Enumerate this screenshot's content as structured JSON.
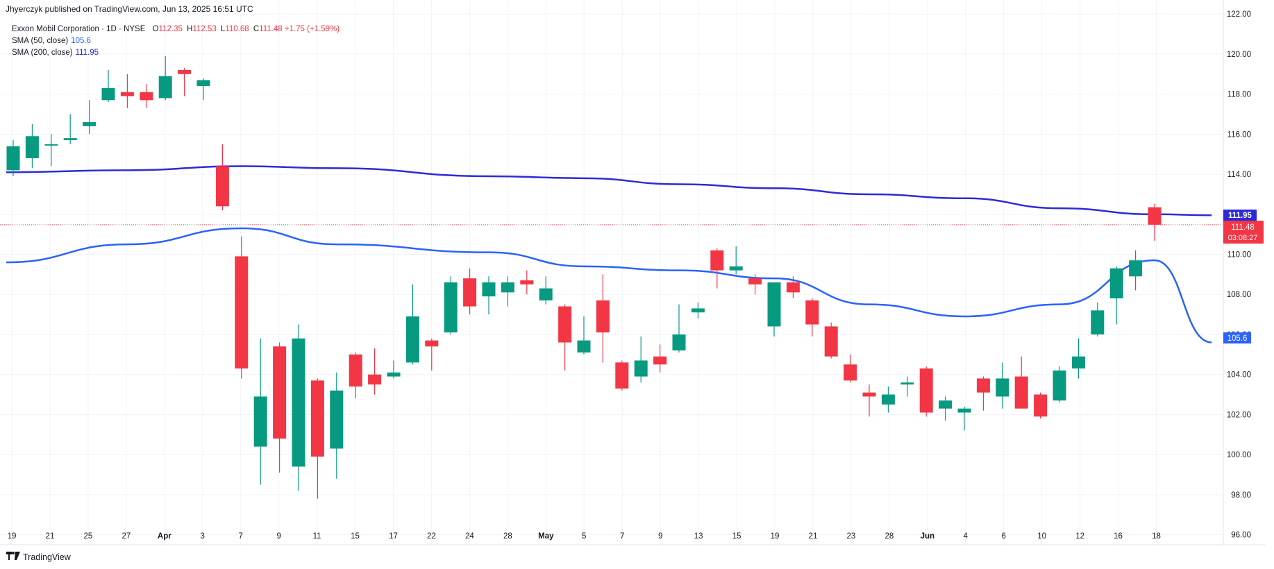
{
  "header": {
    "publisher": "Jhyerczyk published on TradingView.com, Jun 13, 2025 16:51 UTC"
  },
  "legend": {
    "symbol": "Exxon Mobil Corporation · 1D · NYSE",
    "open_label": "O",
    "open": "112.35",
    "high_label": "H",
    "high": "112.53",
    "low_label": "L",
    "low": "110.68",
    "close_label": "C",
    "close": "111.48",
    "change": "+1.75 (+1.59%)",
    "sma50_label": "SMA (50, close)",
    "sma50_value": "105.6",
    "sma200_label": "SMA (200, close)",
    "sma200_value": "111.95"
  },
  "brand": {
    "name": "TradingView"
  },
  "price_tags": {
    "sma200": "111.95",
    "last": "111.48",
    "countdown": "03:08:27",
    "sma50": "105.6"
  },
  "colors": {
    "up": "#089981",
    "down": "#f23645",
    "sma50": "#2962ff",
    "sma200": "#2b2bd8",
    "grid": "#f0f3fa"
  },
  "chart_data": {
    "type": "candlestick",
    "ylim": [
      95.5,
      122.7
    ],
    "yticks": [
      96,
      98,
      100,
      102,
      104,
      106,
      108,
      110,
      112,
      114,
      116,
      118,
      120,
      122
    ],
    "xticks": [
      "19",
      "21",
      "25",
      "27",
      "Apr",
      "3",
      "7",
      "9",
      "11",
      "15",
      "17",
      "22",
      "24",
      "28",
      "May",
      "5",
      "7",
      "9",
      "13",
      "15",
      "19",
      "21",
      "23",
      "28",
      "Jun",
      "4",
      "6",
      "10",
      "12",
      "16",
      "18"
    ],
    "last_price": 111.48,
    "candles": [
      {
        "o": 114.2,
        "h": 115.7,
        "l": 113.9,
        "c": 115.4
      },
      {
        "o": 114.8,
        "h": 116.5,
        "l": 114.3,
        "c": 115.9
      },
      {
        "o": 115.5,
        "h": 116.0,
        "l": 114.4,
        "c": 115.5
      },
      {
        "o": 115.7,
        "h": 117.0,
        "l": 115.5,
        "c": 115.8
      },
      {
        "o": 116.4,
        "h": 117.7,
        "l": 116.0,
        "c": 116.6
      },
      {
        "o": 117.7,
        "h": 119.2,
        "l": 117.6,
        "c": 118.3
      },
      {
        "o": 118.1,
        "h": 119.0,
        "l": 117.3,
        "c": 117.9
      },
      {
        "o": 118.1,
        "h": 118.5,
        "l": 117.3,
        "c": 117.7
      },
      {
        "o": 117.8,
        "h": 119.9,
        "l": 117.7,
        "c": 118.9
      },
      {
        "o": 119.2,
        "h": 119.3,
        "l": 117.9,
        "c": 119.0
      },
      {
        "o": 118.4,
        "h": 118.8,
        "l": 117.7,
        "c": 118.7
      },
      {
        "o": 114.4,
        "h": 115.5,
        "l": 112.2,
        "c": 112.4
      },
      {
        "o": 109.9,
        "h": 110.9,
        "l": 103.8,
        "c": 104.3
      },
      {
        "o": 100.4,
        "h": 105.8,
        "l": 98.5,
        "c": 102.9
      },
      {
        "o": 105.4,
        "h": 105.6,
        "l": 99.1,
        "c": 100.8
      },
      {
        "o": 99.4,
        "h": 106.5,
        "l": 98.2,
        "c": 105.8
      },
      {
        "o": 103.7,
        "h": 103.8,
        "l": 97.8,
        "c": 99.9
      },
      {
        "o": 100.3,
        "h": 104.1,
        "l": 98.8,
        "c": 103.2
      },
      {
        "o": 105.0,
        "h": 105.1,
        "l": 102.8,
        "c": 103.4
      },
      {
        "o": 104.0,
        "h": 105.3,
        "l": 103.0,
        "c": 103.5
      },
      {
        "o": 103.9,
        "h": 104.7,
        "l": 103.8,
        "c": 104.1
      },
      {
        "o": 104.6,
        "h": 108.5,
        "l": 104.5,
        "c": 106.9
      },
      {
        "o": 105.7,
        "h": 105.8,
        "l": 104.2,
        "c": 105.4
      },
      {
        "o": 106.1,
        "h": 108.9,
        "l": 106.0,
        "c": 108.6
      },
      {
        "o": 108.8,
        "h": 109.3,
        "l": 107.0,
        "c": 107.4
      },
      {
        "o": 107.9,
        "h": 108.9,
        "l": 107.0,
        "c": 108.6
      },
      {
        "o": 108.1,
        "h": 108.9,
        "l": 107.4,
        "c": 108.6
      },
      {
        "o": 108.7,
        "h": 109.2,
        "l": 108.0,
        "c": 108.5
      },
      {
        "o": 107.7,
        "h": 108.9,
        "l": 107.5,
        "c": 108.3
      },
      {
        "o": 107.4,
        "h": 107.5,
        "l": 104.2,
        "c": 105.6
      },
      {
        "o": 105.1,
        "h": 106.9,
        "l": 105.0,
        "c": 105.7
      },
      {
        "o": 107.7,
        "h": 109.0,
        "l": 104.6,
        "c": 106.1
      },
      {
        "o": 104.6,
        "h": 104.7,
        "l": 103.2,
        "c": 103.3
      },
      {
        "o": 103.9,
        "h": 105.9,
        "l": 103.6,
        "c": 104.7
      },
      {
        "o": 104.9,
        "h": 105.5,
        "l": 104.1,
        "c": 104.5
      },
      {
        "o": 105.2,
        "h": 107.5,
        "l": 105.1,
        "c": 106.0
      },
      {
        "o": 107.1,
        "h": 107.6,
        "l": 106.8,
        "c": 107.3
      },
      {
        "o": 110.2,
        "h": 110.3,
        "l": 108.3,
        "c": 109.2
      },
      {
        "o": 109.2,
        "h": 110.4,
        "l": 109.0,
        "c": 109.4
      },
      {
        "o": 108.8,
        "h": 109.0,
        "l": 108.0,
        "c": 108.5
      },
      {
        "o": 106.4,
        "h": 108.6,
        "l": 105.9,
        "c": 108.6
      },
      {
        "o": 108.6,
        "h": 108.9,
        "l": 107.8,
        "c": 108.1
      },
      {
        "o": 107.7,
        "h": 107.8,
        "l": 105.9,
        "c": 106.5
      },
      {
        "o": 106.4,
        "h": 106.6,
        "l": 104.8,
        "c": 104.9
      },
      {
        "o": 104.5,
        "h": 105.0,
        "l": 103.6,
        "c": 103.7
      },
      {
        "o": 103.1,
        "h": 103.5,
        "l": 101.9,
        "c": 102.9
      },
      {
        "o": 102.5,
        "h": 103.4,
        "l": 102.1,
        "c": 103.0
      },
      {
        "o": 103.5,
        "h": 103.9,
        "l": 102.9,
        "c": 103.6
      },
      {
        "o": 104.3,
        "h": 104.4,
        "l": 101.9,
        "c": 102.1
      },
      {
        "o": 102.3,
        "h": 102.9,
        "l": 101.7,
        "c": 102.7
      },
      {
        "o": 102.1,
        "h": 102.4,
        "l": 101.2,
        "c": 102.3
      },
      {
        "o": 103.8,
        "h": 103.9,
        "l": 102.2,
        "c": 103.1
      },
      {
        "o": 102.9,
        "h": 104.6,
        "l": 102.3,
        "c": 103.8
      },
      {
        "o": 103.9,
        "h": 104.9,
        "l": 102.3,
        "c": 102.3
      },
      {
        "o": 103.0,
        "h": 103.1,
        "l": 101.8,
        "c": 101.9
      },
      {
        "o": 102.7,
        "h": 104.4,
        "l": 102.6,
        "c": 104.2
      },
      {
        "o": 104.3,
        "h": 105.8,
        "l": 103.8,
        "c": 104.9
      },
      {
        "o": 106.0,
        "h": 107.6,
        "l": 105.9,
        "c": 107.2
      },
      {
        "o": 107.8,
        "h": 109.4,
        "l": 106.5,
        "c": 109.3
      },
      {
        "o": 108.9,
        "h": 110.2,
        "l": 108.2,
        "c": 109.7
      },
      {
        "o": 112.35,
        "h": 112.53,
        "l": 110.68,
        "c": 111.48
      }
    ],
    "series": [
      {
        "name": "SMA (50, close)",
        "x": [
          0,
          6,
          12,
          17,
          25,
          30,
          35,
          40,
          45,
          50,
          55,
          60,
          63
        ],
        "values": [
          109.6,
          110.5,
          111.3,
          110.5,
          110.1,
          109.4,
          109.2,
          108.8,
          107.5,
          106.9,
          107.5,
          109.7,
          105.6
        ]
      },
      {
        "name": "SMA (200, close)",
        "x": [
          0,
          6,
          12,
          17,
          25,
          30,
          35,
          40,
          45,
          50,
          55,
          60,
          63
        ],
        "values": [
          114.1,
          114.2,
          114.4,
          114.3,
          113.9,
          113.8,
          113.5,
          113.3,
          113.0,
          112.8,
          112.3,
          112.0,
          111.95
        ]
      }
    ]
  }
}
